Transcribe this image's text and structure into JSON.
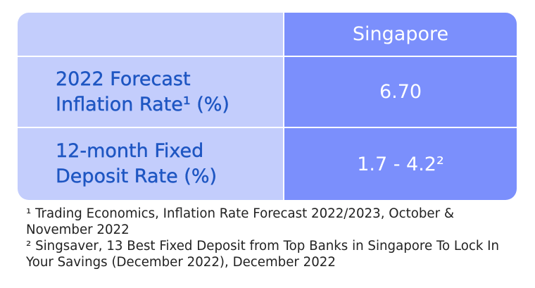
{
  "table": {
    "header": {
      "corner": "",
      "column": "Singapore"
    },
    "rows": [
      {
        "label": "2022 Forecast\nInflation Rate¹ (%)",
        "value": "6.70"
      },
      {
        "label": "12-month Fixed\nDeposit Rate (%)",
        "value": "1.7 - 4.2²"
      }
    ]
  },
  "footnotes": [
    "¹ Trading Economics, Inflation Rate Forecast 2022/2023, October & November 2022",
    "² Singsaver, 13 Best Fixed Deposit from Top Banks in Singapore To Lock In Your Savings (December 2022), December 2022"
  ],
  "colors": {
    "label_bg": "#c3cdfc",
    "value_bg": "#7b8ffc",
    "label_text": "#1e56c2",
    "value_text": "#ffffff"
  }
}
